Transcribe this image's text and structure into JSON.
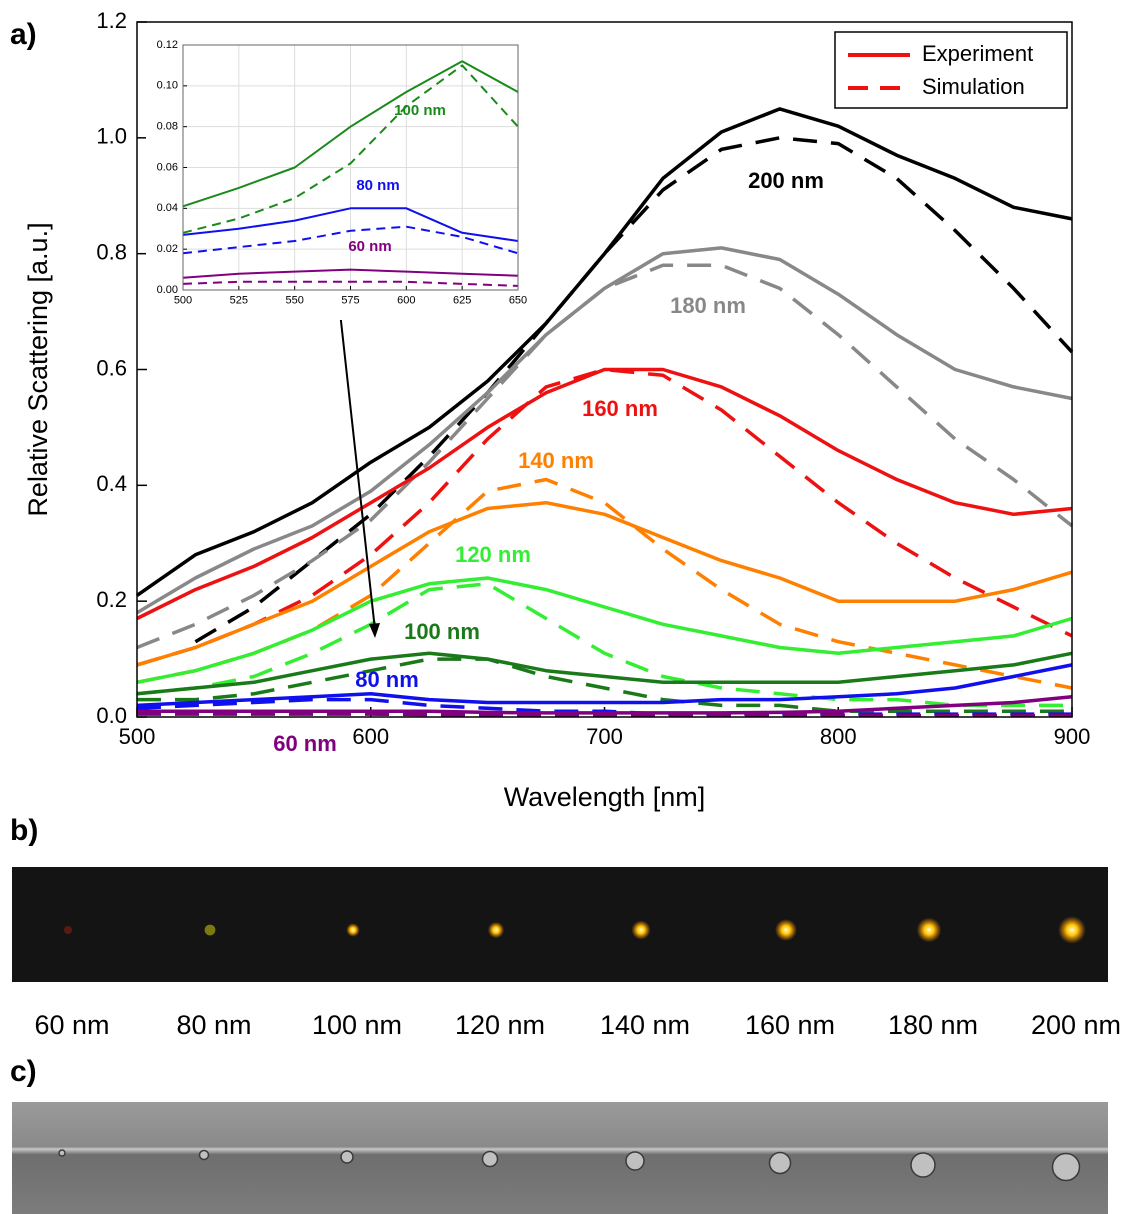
{
  "chart_data": [
    {
      "type": "line",
      "xlabel": "Wavelength [nm]",
      "ylabel": "Relative Scattering [a.u.]",
      "x": [
        500,
        525,
        550,
        575,
        600,
        625,
        650,
        675,
        700,
        725,
        750,
        775,
        800,
        825,
        850,
        875,
        900
      ],
      "xlim": [
        500,
        900
      ],
      "xticks": [
        500,
        600,
        700,
        800,
        900
      ],
      "ylim": [
        0,
        1.2
      ],
      "yticks": [
        {
          "value": 0,
          "label": "0.0"
        },
        0.2,
        0.4,
        0.6,
        0.8,
        {
          "value": 1,
          "label": "1.0"
        },
        1.2
      ],
      "grid": false,
      "legend": {
        "entries": [
          "Experiment",
          "Simulation"
        ],
        "position": "upper right"
      },
      "series": [
        {
          "name": "200 nm",
          "color": "#000000",
          "experiment": [
            0.21,
            0.28,
            0.32,
            0.37,
            0.44,
            0.5,
            0.58,
            0.68,
            0.8,
            0.93,
            1.01,
            1.05,
            1.02,
            0.97,
            0.93,
            0.88,
            0.86
          ],
          "simulation": [
            null,
            0.13,
            0.19,
            0.27,
            0.35,
            0.45,
            0.56,
            0.68,
            0.8,
            0.91,
            0.98,
            1.0,
            0.99,
            0.93,
            0.84,
            0.74,
            0.63
          ]
        },
        {
          "name": "180 nm",
          "color": "#888888",
          "experiment": [
            0.18,
            0.24,
            0.29,
            0.33,
            0.39,
            0.47,
            0.56,
            0.66,
            0.74,
            0.8,
            0.81,
            0.79,
            0.73,
            0.66,
            0.6,
            0.57,
            0.55
          ],
          "simulation": [
            0.12,
            0.16,
            0.21,
            0.27,
            0.34,
            0.44,
            0.55,
            0.66,
            0.74,
            0.78,
            0.78,
            0.74,
            0.66,
            0.57,
            0.48,
            0.41,
            0.33
          ]
        },
        {
          "name": "160 nm",
          "color": "#ee1111",
          "experiment": [
            0.17,
            0.22,
            0.26,
            0.31,
            0.37,
            0.43,
            0.5,
            0.56,
            0.6,
            0.6,
            0.57,
            0.52,
            0.46,
            0.41,
            0.37,
            0.35,
            0.36
          ],
          "simulation": [
            0.09,
            0.12,
            0.16,
            0.21,
            0.28,
            0.37,
            0.48,
            0.57,
            0.6,
            0.59,
            0.53,
            0.45,
            0.37,
            0.3,
            0.24,
            0.19,
            0.14
          ]
        },
        {
          "name": "140 nm",
          "color": "#ff8000",
          "experiment": [
            0.09,
            0.12,
            0.16,
            0.2,
            0.26,
            0.32,
            0.36,
            0.37,
            0.35,
            0.31,
            0.27,
            0.24,
            0.2,
            0.2,
            0.2,
            0.22,
            0.25
          ],
          "simulation": [
            0.06,
            0.08,
            0.11,
            0.15,
            0.21,
            0.3,
            0.39,
            0.41,
            0.37,
            0.29,
            0.22,
            0.16,
            0.13,
            0.11,
            0.09,
            0.07,
            0.05
          ]
        },
        {
          "name": "120 nm",
          "color": "#33ee33",
          "experiment": [
            0.06,
            0.08,
            0.11,
            0.15,
            0.2,
            0.23,
            0.24,
            0.22,
            0.19,
            0.16,
            0.14,
            0.12,
            0.11,
            0.12,
            0.13,
            0.14,
            0.17
          ],
          "simulation": [
            0.04,
            0.05,
            0.07,
            0.11,
            0.16,
            0.22,
            0.23,
            0.17,
            0.11,
            0.07,
            0.05,
            0.04,
            0.03,
            0.03,
            0.02,
            0.02,
            0.02
          ]
        },
        {
          "name": "100 nm",
          "color": "#1a7a1a",
          "experiment": [
            0.04,
            0.05,
            0.06,
            0.08,
            0.1,
            0.11,
            0.1,
            0.08,
            0.07,
            0.06,
            0.06,
            0.06,
            0.06,
            0.07,
            0.08,
            0.09,
            0.11
          ],
          "simulation": [
            0.03,
            0.03,
            0.04,
            0.06,
            0.08,
            0.1,
            0.1,
            0.07,
            0.05,
            0.03,
            0.02,
            0.02,
            0.01,
            0.01,
            0.01,
            0.01,
            0.01
          ]
        },
        {
          "name": "80 nm",
          "color": "#1010ee",
          "experiment": [
            0.02,
            0.025,
            0.03,
            0.035,
            0.04,
            0.03,
            0.025,
            0.025,
            0.025,
            0.025,
            0.03,
            0.03,
            0.035,
            0.04,
            0.05,
            0.07,
            0.09
          ],
          "simulation": [
            0.015,
            0.02,
            0.025,
            0.03,
            0.03,
            0.02,
            0.015,
            0.01,
            0.01,
            0.005,
            0.005,
            0.005,
            0.005,
            0.005,
            0.005,
            0.005,
            0.005
          ]
        },
        {
          "name": "60 nm",
          "color": "#800080",
          "experiment": [
            0.01,
            0.01,
            0.01,
            0.01,
            0.01,
            0.01,
            0.008,
            0.007,
            0.007,
            0.007,
            0.007,
            0.008,
            0.01,
            0.015,
            0.02,
            0.025,
            0.035
          ],
          "simulation": [
            0.005,
            0.005,
            0.005,
            0.005,
            0.005,
            0.004,
            0.004,
            0.004,
            0.003,
            0.003,
            0.003,
            0.003,
            0.003,
            0.002,
            0.002,
            0.002,
            0.002
          ]
        }
      ]
    },
    {
      "type": "line",
      "x": [
        500,
        525,
        550,
        575,
        600,
        625,
        650
      ],
      "xlim": [
        500,
        650
      ],
      "xticks": [
        500,
        525,
        550,
        575,
        600,
        625,
        650
      ],
      "ylim": [
        0,
        0.12
      ],
      "yticks": [
        {
          "value": 0,
          "label": "0.00"
        },
        0.02,
        0.04,
        0.06,
        0.08,
        {
          "value": 0.1,
          "label": "0.10"
        },
        0.12
      ],
      "grid": true,
      "series": [
        {
          "name": "100 nm",
          "color": "#1a8a1a",
          "experiment": [
            0.041,
            0.05,
            0.06,
            0.08,
            0.097,
            0.112,
            0.097
          ],
          "simulation": [
            0.028,
            0.035,
            0.045,
            0.062,
            0.09,
            0.11,
            0.08
          ]
        },
        {
          "name": "80 nm",
          "color": "#1010ee",
          "experiment": [
            0.027,
            0.03,
            0.034,
            0.04,
            0.04,
            0.028,
            0.024
          ],
          "simulation": [
            0.018,
            0.021,
            0.024,
            0.029,
            0.031,
            0.026,
            0.018
          ]
        },
        {
          "name": "60 nm",
          "color": "#800080",
          "experiment": [
            0.006,
            0.008,
            0.009,
            0.01,
            0.009,
            0.008,
            0.007
          ],
          "simulation": [
            0.003,
            0.004,
            0.004,
            0.004,
            0.004,
            0.003,
            0.002
          ]
        }
      ]
    }
  ],
  "panel_labels": [
    "a)",
    "b)",
    "c)"
  ],
  "darkfield": {
    "labels": [
      "60 nm",
      "80 nm",
      "100 nm",
      "120 nm",
      "140 nm",
      "160 nm",
      "180 nm",
      "200 nm"
    ]
  }
}
